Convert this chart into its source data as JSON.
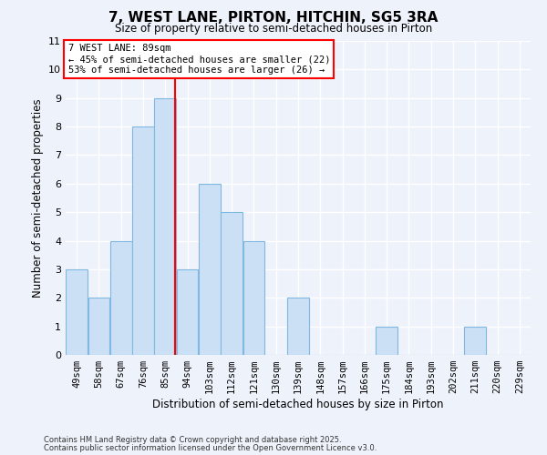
{
  "title": "7, WEST LANE, PIRTON, HITCHIN, SG5 3RA",
  "subtitle": "Size of property relative to semi-detached houses in Pirton",
  "xlabel": "Distribution of semi-detached houses by size in Pirton",
  "ylabel": "Number of semi-detached properties",
  "bin_labels": [
    "49sqm",
    "58sqm",
    "67sqm",
    "76sqm",
    "85sqm",
    "94sqm",
    "103sqm",
    "112sqm",
    "121sqm",
    "130sqm",
    "139sqm",
    "148sqm",
    "157sqm",
    "166sqm",
    "175sqm",
    "184sqm",
    "193sqm",
    "202sqm",
    "211sqm",
    "220sqm",
    "229sqm"
  ],
  "bin_edges": [
    44.5,
    53.5,
    62.5,
    71.5,
    80.5,
    89.5,
    98.5,
    107.5,
    116.5,
    125.5,
    134.5,
    143.5,
    152.5,
    161.5,
    170.5,
    179.5,
    188.5,
    197.5,
    206.5,
    215.5,
    224.5,
    233.5
  ],
  "counts": [
    3,
    2,
    4,
    8,
    9,
    3,
    6,
    5,
    4,
    0,
    2,
    0,
    0,
    0,
    1,
    0,
    0,
    0,
    1,
    0,
    0
  ],
  "bar_color": "#cce0f5",
  "bar_edge_color": "#7fb8e0",
  "red_line_x": 89,
  "annotation_title": "7 WEST LANE: 89sqm",
  "annotation_line2": "← 45% of semi-detached houses are smaller (22)",
  "annotation_line3": "53% of semi-detached houses are larger (26) →",
  "ylim": [
    0,
    11
  ],
  "yticks": [
    0,
    1,
    2,
    3,
    4,
    5,
    6,
    7,
    8,
    9,
    10,
    11
  ],
  "background_color": "#eef2fb",
  "grid_color": "#ffffff",
  "footer1": "Contains HM Land Registry data © Crown copyright and database right 2025.",
  "footer2": "Contains public sector information licensed under the Open Government Licence v3.0."
}
